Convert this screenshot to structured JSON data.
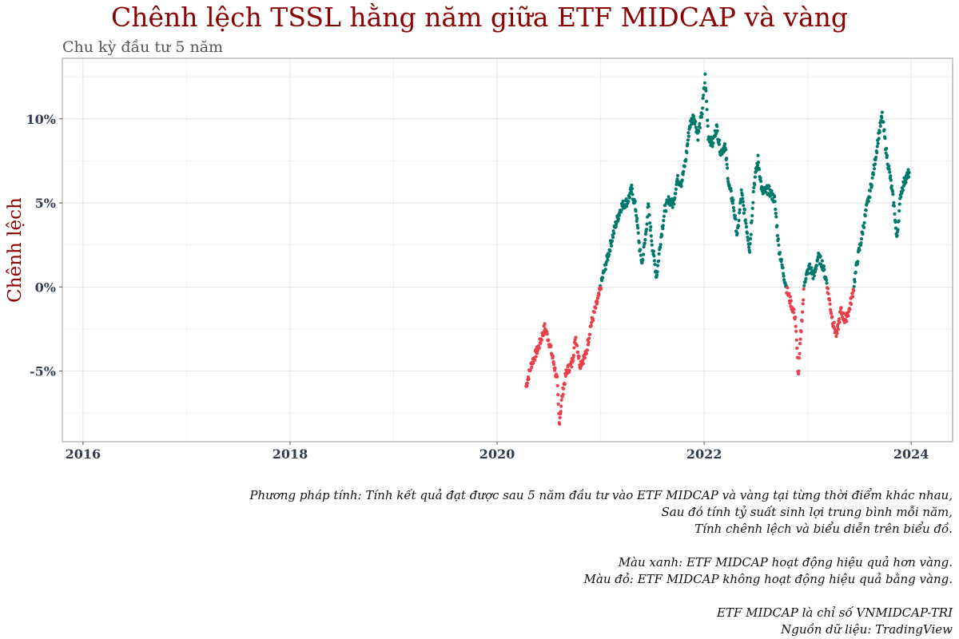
{
  "chart_data": {
    "type": "scatter",
    "title": "Chênh lệch TSSL hằng năm giữa ETF MIDCAP và vàng",
    "subtitle": "Chu kỳ đầu tư 5 năm",
    "xlabel": "",
    "ylabel": "Chênh lệch",
    "xlim": [
      2015.8,
      2024.4
    ],
    "ylim": [
      -9.2,
      13.6
    ],
    "x_ticks": [
      2016,
      2018,
      2020,
      2022,
      2024
    ],
    "x_tick_labels": [
      "2016",
      "2018",
      "2020",
      "2022",
      "2024"
    ],
    "y_ticks": [
      -5,
      0,
      5,
      10
    ],
    "y_tick_labels": [
      "-5%",
      "0%",
      "5%",
      "10%"
    ],
    "colors": {
      "positive": "#00796b",
      "negative": "#e8404a"
    },
    "series_keypoints": [
      [
        2020.28,
        -5.9
      ],
      [
        2020.33,
        -4.6
      ],
      [
        2020.4,
        -3.6
      ],
      [
        2020.46,
        -2.4
      ],
      [
        2020.5,
        -3.2
      ],
      [
        2020.54,
        -4.3
      ],
      [
        2020.58,
        -5.6
      ],
      [
        2020.6,
        -8.1
      ],
      [
        2020.63,
        -6.4
      ],
      [
        2020.67,
        -5.0
      ],
      [
        2020.72,
        -4.6
      ],
      [
        2020.76,
        -3.0
      ],
      [
        2020.8,
        -4.6
      ],
      [
        2020.86,
        -4.0
      ],
      [
        2020.9,
        -2.4
      ],
      [
        2020.94,
        -1.5
      ],
      [
        2020.98,
        -0.6
      ],
      [
        2021.02,
        0.6
      ],
      [
        2021.06,
        1.6
      ],
      [
        2021.1,
        2.6
      ],
      [
        2021.14,
        3.6
      ],
      [
        2021.2,
        4.8
      ],
      [
        2021.26,
        5.1
      ],
      [
        2021.3,
        5.8
      ],
      [
        2021.34,
        4.6
      ],
      [
        2021.38,
        2.1
      ],
      [
        2021.4,
        1.4
      ],
      [
        2021.43,
        2.8
      ],
      [
        2021.46,
        4.8
      ],
      [
        2021.5,
        2.4
      ],
      [
        2021.54,
        0.6
      ],
      [
        2021.58,
        2.8
      ],
      [
        2021.62,
        4.6
      ],
      [
        2021.66,
        5.2
      ],
      [
        2021.7,
        4.9
      ],
      [
        2021.74,
        6.4
      ],
      [
        2021.78,
        6.2
      ],
      [
        2021.82,
        7.5
      ],
      [
        2021.86,
        9.6
      ],
      [
        2021.9,
        10.2
      ],
      [
        2021.94,
        9.0
      ],
      [
        2021.98,
        10.4
      ],
      [
        2022.01,
        12.5
      ],
      [
        2022.04,
        9.0
      ],
      [
        2022.08,
        8.5
      ],
      [
        2022.12,
        9.5
      ],
      [
        2022.16,
        8.0
      ],
      [
        2022.2,
        8.4
      ],
      [
        2022.24,
        6.0
      ],
      [
        2022.28,
        5.0
      ],
      [
        2022.32,
        3.0
      ],
      [
        2022.36,
        5.6
      ],
      [
        2022.4,
        4.0
      ],
      [
        2022.44,
        2.2
      ],
      [
        2022.48,
        6.0
      ],
      [
        2022.52,
        7.6
      ],
      [
        2022.56,
        5.6
      ],
      [
        2022.62,
        5.8
      ],
      [
        2022.68,
        5.2
      ],
      [
        2022.72,
        2.4
      ],
      [
        2022.76,
        1.0
      ],
      [
        2022.8,
        -0.2
      ],
      [
        2022.84,
        -1.0
      ],
      [
        2022.88,
        -1.8
      ],
      [
        2022.91,
        -5.3
      ],
      [
        2022.93,
        -3.2
      ],
      [
        2022.97,
        0.4
      ],
      [
        2023.02,
        1.2
      ],
      [
        2023.06,
        0.6
      ],
      [
        2023.1,
        1.8
      ],
      [
        2023.14,
        1.4
      ],
      [
        2023.18,
        0.4
      ],
      [
        2023.2,
        -0.4
      ],
      [
        2023.24,
        -2.0
      ],
      [
        2023.28,
        -2.9
      ],
      [
        2023.32,
        -1.4
      ],
      [
        2023.36,
        -2.0
      ],
      [
        2023.4,
        -1.4
      ],
      [
        2023.44,
        -0.2
      ],
      [
        2023.48,
        1.6
      ],
      [
        2023.52,
        2.9
      ],
      [
        2023.56,
        4.4
      ],
      [
        2023.6,
        5.6
      ],
      [
        2023.64,
        7.0
      ],
      [
        2023.68,
        8.8
      ],
      [
        2023.72,
        10.2
      ],
      [
        2023.76,
        8.0
      ],
      [
        2023.8,
        6.4
      ],
      [
        2023.84,
        4.5
      ],
      [
        2023.86,
        2.8
      ],
      [
        2023.9,
        5.6
      ],
      [
        2023.94,
        6.4
      ],
      [
        2023.98,
        6.8
      ]
    ]
  },
  "notes": {
    "method": [
      "Phương pháp tính: Tính kết quả đạt được sau 5 năm đầu tư vào ETF MIDCAP và vàng tại từng thời điểm khác nhau,",
      "Sau đó tính tỷ suất sinh lợi trung bình mỗi năm,",
      "Tính chênh lệch và biểu diễn trên biểu đồ."
    ],
    "legend": [
      "Màu xanh: ETF MIDCAP hoạt động hiệu quả hơn vàng.",
      "Màu đỏ: ETF MIDCAP không hoạt động hiệu quả bằng vàng."
    ],
    "source": [
      "ETF MIDCAP là chỉ số VNMIDCAP-TRI",
      "Nguồn dữ liệu: TradingView"
    ]
  }
}
